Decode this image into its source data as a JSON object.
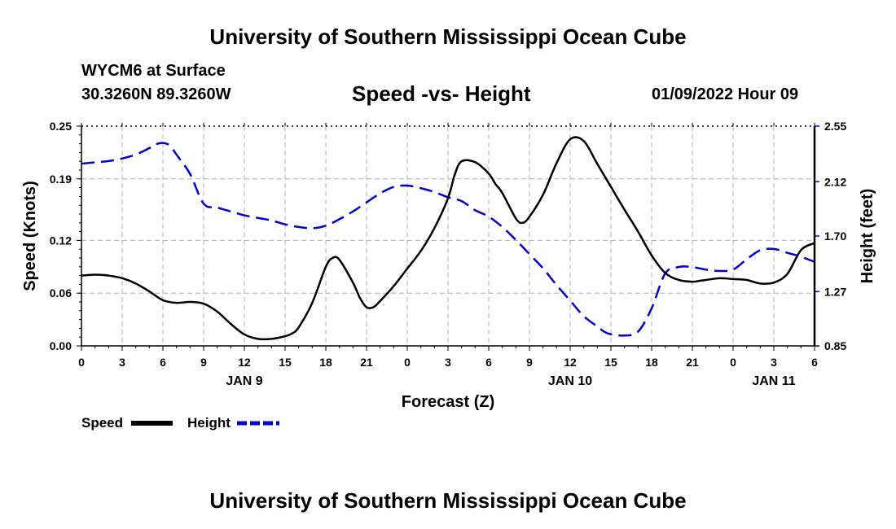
{
  "header": {
    "title_top": "University of Southern Mississippi Ocean Cube",
    "station": "WYCM6 at Surface",
    "coords": "30.3260N  89.3260W",
    "chart_title": "Speed -vs- Height",
    "datetime": "01/09/2022 Hour 09",
    "title_bottom": "University of Southern Mississippi Ocean Cube"
  },
  "colors": {
    "speed": "#000000",
    "height": "#0000cc",
    "grid": "#b0b0b0"
  },
  "chart_data": {
    "type": "line",
    "title": "Speed -vs- Height",
    "xlabel": "Forecast (Z)",
    "ylabel": "Speed (Knots)",
    "y2label": "Height (feet)",
    "xlim": [
      0,
      54
    ],
    "ylim": [
      0,
      0.25
    ],
    "y2lim": [
      0.85,
      2.55
    ],
    "grid": true,
    "legend_position": "bottom-left",
    "x_ticks": [
      0,
      3,
      6,
      9,
      12,
      15,
      18,
      21,
      24,
      27,
      30,
      33,
      36,
      39,
      42,
      45,
      48,
      51,
      54
    ],
    "x_tick_labels": [
      "0",
      "3",
      "6",
      "9",
      "12",
      "15",
      "18",
      "21",
      "0",
      "3",
      "6",
      "9",
      "12",
      "15",
      "18",
      "21",
      "0",
      "3",
      "6"
    ],
    "day_labels": [
      {
        "x": 12,
        "label": "JAN 9"
      },
      {
        "x": 36,
        "label": "JAN 10"
      },
      {
        "x": 51,
        "label": "JAN 11"
      }
    ],
    "y_ticks": [
      0.0,
      0.06,
      0.12,
      0.19,
      0.25
    ],
    "y_tick_labels": [
      "0.00",
      "0.06",
      "0.12",
      "0.19",
      "0.25"
    ],
    "y2_ticks": [
      0.85,
      1.27,
      1.7,
      2.12,
      2.55
    ],
    "y2_tick_labels": [
      "0.85",
      "1.27",
      "1.70",
      "2.12",
      "2.55"
    ],
    "series": [
      {
        "name": "Speed",
        "axis": "left",
        "style": "solid",
        "x": [
          0,
          1,
          2,
          3,
          4,
          5,
          6,
          7,
          8,
          9,
          10,
          11,
          12,
          13,
          14,
          15,
          15.5,
          16,
          17,
          18,
          18.5,
          19,
          20,
          20.5,
          21,
          21.5,
          22,
          23,
          24,
          25,
          26,
          27,
          27.5,
          28,
          29,
          30,
          30.5,
          31,
          32,
          32.5,
          33,
          34,
          35,
          36,
          37,
          38,
          39,
          40,
          41,
          42,
          43,
          44,
          45,
          45.5,
          46,
          47,
          48,
          49,
          50,
          51,
          52,
          53,
          54
        ],
        "values": [
          0.08,
          0.081,
          0.08,
          0.077,
          0.071,
          0.062,
          0.052,
          0.049,
          0.05,
          0.048,
          0.039,
          0.025,
          0.013,
          0.008,
          0.008,
          0.011,
          0.014,
          0.021,
          0.049,
          0.09,
          0.1,
          0.098,
          0.072,
          0.055,
          0.044,
          0.044,
          0.051,
          0.068,
          0.088,
          0.108,
          0.134,
          0.168,
          0.195,
          0.21,
          0.209,
          0.196,
          0.184,
          0.174,
          0.145,
          0.14,
          0.147,
          0.172,
          0.208,
          0.235,
          0.233,
          0.207,
          0.181,
          0.155,
          0.13,
          0.103,
          0.083,
          0.075,
          0.073,
          0.074,
          0.075,
          0.077,
          0.076,
          0.075,
          0.071,
          0.072,
          0.082,
          0.109,
          0.117
        ]
      },
      {
        "name": "Height",
        "axis": "right",
        "style": "dashed",
        "x": [
          0,
          1,
          2,
          3,
          4,
          5,
          5.5,
          6,
          6.5,
          7,
          8,
          9,
          10,
          11,
          12,
          13,
          14,
          15,
          16,
          17,
          18,
          19,
          20,
          21,
          22,
          23,
          24,
          25,
          26,
          27,
          28,
          29,
          30,
          31,
          32,
          33,
          34,
          35,
          36,
          37,
          38,
          38.5,
          39,
          40,
          41,
          42,
          43,
          44,
          45,
          46,
          47,
          48,
          49,
          50,
          51,
          52,
          53,
          54
        ],
        "values": [
          2.26,
          2.27,
          2.28,
          2.3,
          2.33,
          2.38,
          2.41,
          2.42,
          2.4,
          2.33,
          2.18,
          1.95,
          1.92,
          1.89,
          1.86,
          1.84,
          1.82,
          1.79,
          1.77,
          1.76,
          1.78,
          1.83,
          1.89,
          1.96,
          2.03,
          2.08,
          2.09,
          2.07,
          2.04,
          2.0,
          1.97,
          1.9,
          1.85,
          1.77,
          1.67,
          1.56,
          1.45,
          1.32,
          1.2,
          1.08,
          1.0,
          0.96,
          0.94,
          0.93,
          0.96,
          1.14,
          1.41,
          1.46,
          1.46,
          1.44,
          1.43,
          1.44,
          1.52,
          1.59,
          1.6,
          1.57,
          1.54,
          1.5
        ]
      }
    ]
  }
}
